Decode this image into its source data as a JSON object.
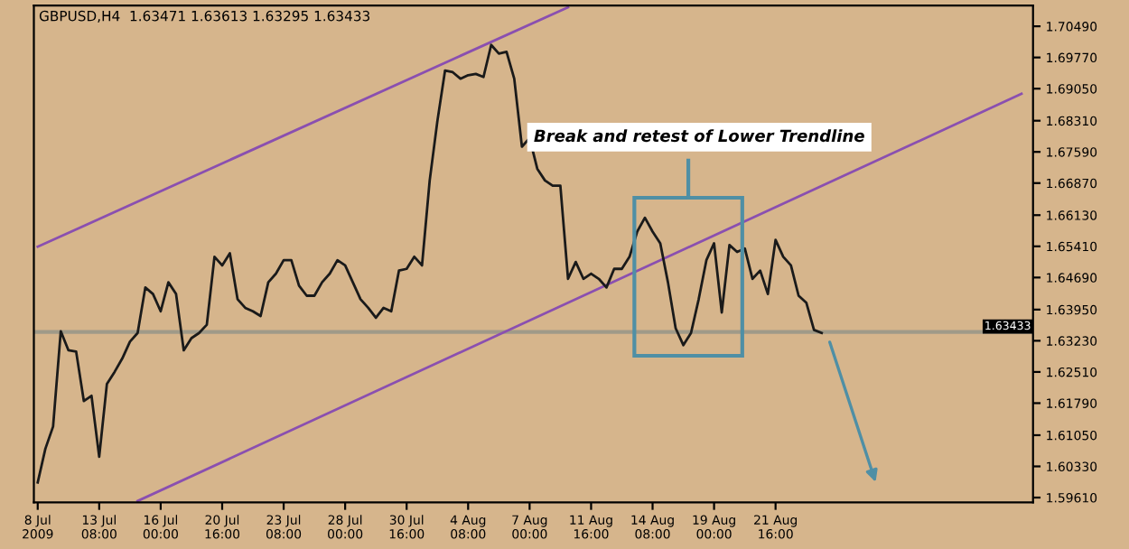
{
  "chart_data": {
    "type": "line",
    "title": "GBPUSD,H4  1.63471 1.63613 1.63295 1.63433",
    "categories": [
      "8 Jul 2009",
      null,
      null,
      null,
      null,
      null,
      null,
      null,
      "13 Jul 08:00",
      null,
      null,
      null,
      null,
      null,
      null,
      null,
      "16 Jul 00:00",
      null,
      null,
      null,
      null,
      null,
      null,
      null,
      "20 Jul 16:00",
      null,
      null,
      null,
      null,
      null,
      null,
      null,
      "23 Jul 08:00",
      null,
      null,
      null,
      null,
      null,
      null,
      null,
      "28 Jul 00:00",
      null,
      null,
      null,
      null,
      null,
      null,
      null,
      "30 Jul 16:00",
      null,
      null,
      null,
      null,
      null,
      null,
      null,
      "4 Aug 08:00",
      null,
      null,
      null,
      null,
      null,
      null,
      null,
      "7 Aug 00:00",
      null,
      null,
      null,
      null,
      null,
      null,
      null,
      "11 Aug 16:00",
      null,
      null,
      null,
      null,
      null,
      null,
      null,
      "14 Aug 08:00",
      null,
      null,
      null,
      null,
      null,
      null,
      null,
      "19 Aug 00:00",
      null,
      null,
      null,
      null,
      null,
      null,
      null,
      "21 Aug 16:00",
      null,
      null,
      null,
      null,
      null,
      null,
      null,
      null,
      null,
      null,
      null,
      null,
      null,
      null,
      null,
      null,
      null,
      null,
      null,
      null,
      null,
      null,
      null,
      null,
      null,
      null,
      null,
      null,
      null,
      null,
      null,
      null,
      null
    ],
    "series": [
      {
        "color": "#1a1a1a",
        "values": [
          1.5996,
          1.6074,
          1.6125,
          1.6345,
          1.6301,
          1.6298,
          1.6184,
          1.6196,
          1.6055,
          1.6223,
          1.6251,
          1.6282,
          1.6321,
          1.6341,
          1.6446,
          1.6431,
          1.6391,
          1.6458,
          1.6431,
          1.6301,
          1.6329,
          1.6341,
          1.636,
          1.6517,
          1.6497,
          1.6525,
          1.6419,
          1.6399,
          1.6391,
          1.638,
          1.6458,
          1.6478,
          1.6509,
          1.6509,
          1.645,
          1.6427,
          1.6427,
          1.6458,
          1.6478,
          1.6509,
          1.6497,
          1.6458,
          1.6419,
          1.6399,
          1.6376,
          1.6399,
          1.6391,
          1.6485,
          1.6489,
          1.6517,
          1.6497,
          1.6693,
          1.683,
          1.6947,
          1.6943,
          1.6928,
          1.6936,
          1.6939,
          1.6932,
          1.7006,
          1.6986,
          1.699,
          1.6928,
          1.6771,
          1.6791,
          1.672,
          1.6693,
          1.6681,
          1.6681,
          1.6466,
          1.6505,
          1.6466,
          1.6478,
          1.6466,
          1.6446,
          1.6489,
          1.6489,
          1.6517,
          1.6575,
          1.6607,
          1.6575,
          1.6548,
          1.6458,
          1.6352,
          1.6313,
          1.6341,
          1.6419,
          1.6509,
          1.6548,
          1.6388,
          1.6544,
          1.6528,
          1.6536,
          1.6466,
          1.6485,
          1.6431,
          1.6556,
          1.6517,
          1.6497,
          1.6427,
          1.6411,
          1.6348,
          1.6341,
          null,
          null,
          null,
          null,
          null,
          null,
          null,
          null,
          null,
          null,
          null,
          null,
          null,
          null,
          null,
          null,
          null,
          null,
          null,
          null,
          null,
          null,
          null,
          null,
          null,
          null,
          null
        ]
      },
      {
        "color": "#8a4fb0",
        "values": [
          1.654,
          null,
          null,
          null,
          null,
          null,
          null,
          null,
          null,
          null,
          null,
          null,
          null,
          null,
          null,
          null,
          null,
          null,
          null,
          null,
          null,
          null,
          null,
          null,
          null,
          null,
          null,
          null,
          null,
          null,
          null,
          null,
          null,
          null,
          null,
          null,
          null,
          null,
          null,
          null,
          null,
          null,
          null,
          null,
          null,
          null,
          null,
          null,
          null,
          null,
          null,
          null,
          null,
          null,
          null,
          null,
          null,
          null,
          null,
          null,
          null,
          null,
          null,
          null,
          null,
          null,
          null,
          null,
          null,
          1.7093,
          null,
          null,
          null,
          null,
          null,
          null,
          null,
          null,
          null,
          null,
          null,
          null,
          null,
          null,
          null,
          null,
          null,
          null,
          null,
          null,
          null,
          null,
          null,
          null,
          null,
          null,
          null,
          null,
          null,
          null,
          null,
          null,
          null,
          null,
          null,
          null,
          null,
          null,
          null,
          null,
          null,
          null,
          null,
          null,
          null,
          null,
          null,
          null,
          null,
          null,
          null,
          null,
          null,
          null,
          null,
          null,
          null,
          null,
          null,
          null
        ]
      },
      {
        "color": "#8a4fb0",
        "values": [
          null,
          null,
          null,
          null,
          null,
          null,
          null,
          null,
          null,
          null,
          null,
          null,
          null,
          1.5953,
          null,
          null,
          null,
          null,
          null,
          null,
          null,
          null,
          null,
          null,
          null,
          null,
          null,
          null,
          null,
          null,
          null,
          null,
          null,
          null,
          null,
          null,
          null,
          null,
          null,
          null,
          null,
          null,
          null,
          null,
          null,
          null,
          null,
          null,
          null,
          null,
          null,
          null,
          null,
          null,
          null,
          null,
          null,
          null,
          null,
          null,
          null,
          null,
          null,
          null,
          null,
          null,
          null,
          null,
          null,
          null,
          null,
          null,
          null,
          null,
          null,
          null,
          null,
          null,
          null,
          null,
          null,
          null,
          null,
          null,
          null,
          null,
          null,
          null,
          null,
          null,
          null,
          null,
          null,
          null,
          null,
          null,
          null,
          null,
          null,
          null,
          null,
          null,
          null,
          null,
          null,
          null,
          null,
          null,
          null,
          null,
          null,
          null,
          null,
          null,
          null,
          null,
          null,
          null,
          null,
          null,
          null,
          null,
          null,
          null,
          null,
          null,
          null,
          null,
          1.6893,
          null
        ]
      }
    ],
    "annotations": [
      "Break and retest of Lower Trendline"
    ],
    "ref_lines": [
      {
        "axis": "y",
        "value": 1.63433,
        "label": "1.63433",
        "color": "#a09a88"
      }
    ],
    "ylim": [
      1.595,
      1.7097
    ],
    "yticks": [
      {
        "value": 1.7049,
        "label": "1.70490"
      },
      {
        "value": 1.6977,
        "label": "1.69770"
      },
      {
        "value": 1.6905,
        "label": "1.69050"
      },
      {
        "value": 1.6831,
        "label": "1.68310"
      },
      {
        "value": 1.6759,
        "label": "1.67590"
      },
      {
        "value": 1.6687,
        "label": "1.66870"
      },
      {
        "value": 1.6613,
        "label": "1.66130"
      },
      {
        "value": 1.6541,
        "label": "1.65410"
      },
      {
        "value": 1.6469,
        "label": "1.64690"
      },
      {
        "value": 1.6395,
        "label": "1.63950"
      },
      {
        "value": 1.6323,
        "label": "1.63230"
      },
      {
        "value": 1.6251,
        "label": "1.62510"
      },
      {
        "value": 1.6179,
        "label": "1.61790"
      },
      {
        "value": 1.6105,
        "label": "1.61050"
      },
      {
        "value": 1.6033,
        "label": "1.60330"
      },
      {
        "value": 1.5961,
        "label": "1.59610"
      }
    ],
    "grid": false,
    "legend": false
  }
}
